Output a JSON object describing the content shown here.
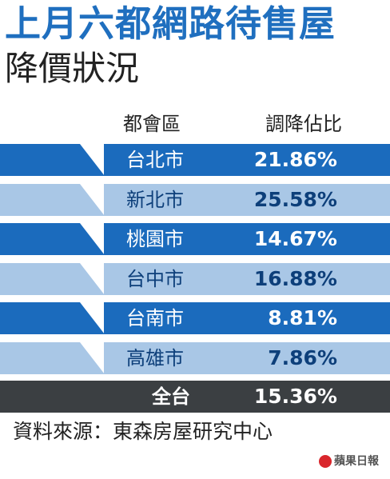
{
  "title": "上月六都網路待售屋",
  "subtitle": "降價狀況",
  "chart_data": {
    "type": "table",
    "column_headers": [
      "都會區",
      "調降佔比"
    ],
    "rows": [
      {
        "city": "台北市",
        "value": 21.86,
        "label": "21.86%"
      },
      {
        "city": "新北市",
        "value": 25.58,
        "label": "25.58%"
      },
      {
        "city": "桃園市",
        "value": 14.67,
        "label": "14.67%"
      },
      {
        "city": "台中市",
        "value": 16.88,
        "label": "16.88%"
      },
      {
        "city": "台南市",
        "value": 8.81,
        "label": "8.81%"
      },
      {
        "city": "高雄市",
        "value": 7.86,
        "label": "7.86%"
      }
    ],
    "total": {
      "city": "全台",
      "value": 15.36,
      "label": "15.36%"
    }
  },
  "source": "資料來源：東森房屋研究中心",
  "logo": "蘋果日報",
  "colors": {
    "dark_blue": "#1b6bbd",
    "light_blue": "#a9c7e6",
    "total_bg": "#3b3f42",
    "title_blue": "#1f6fbf"
  }
}
